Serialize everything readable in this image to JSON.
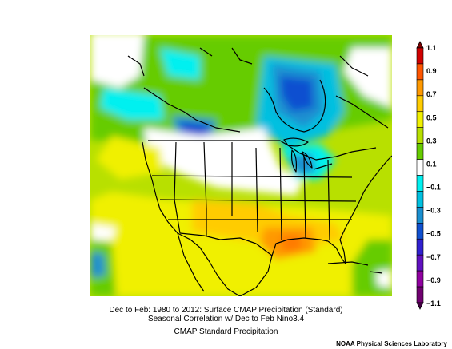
{
  "figure": {
    "title_line1": "Dec to Feb: 1980 to 2012: Surface CMAP Precipitation (Standard)",
    "title_line2": "Seasonal Correlation w/ Dec to Feb Nino3.4",
    "subtitle": "CMAP Standard Precipitation",
    "credit": "NOAA Physical Sciences Laboratory"
  },
  "colorbar": {
    "labels": [
      "1.1",
      "0.9",
      "0.7",
      "0.5",
      "0.3",
      "0.1",
      "−0.1",
      "−0.3",
      "−0.5",
      "−0.7",
      "−0.9",
      "−1.1"
    ],
    "colors": [
      "#7a0000",
      "#d00000",
      "#ff5500",
      "#ff9900",
      "#ffcc00",
      "#f0f000",
      "#b8e000",
      "#66cc00",
      "#ffffff",
      "#00f0f0",
      "#00c0e0",
      "#1a8fd0",
      "#1050d0",
      "#3020d0",
      "#6010c0",
      "#9000a0",
      "#700070",
      "#400040"
    ]
  }
}
